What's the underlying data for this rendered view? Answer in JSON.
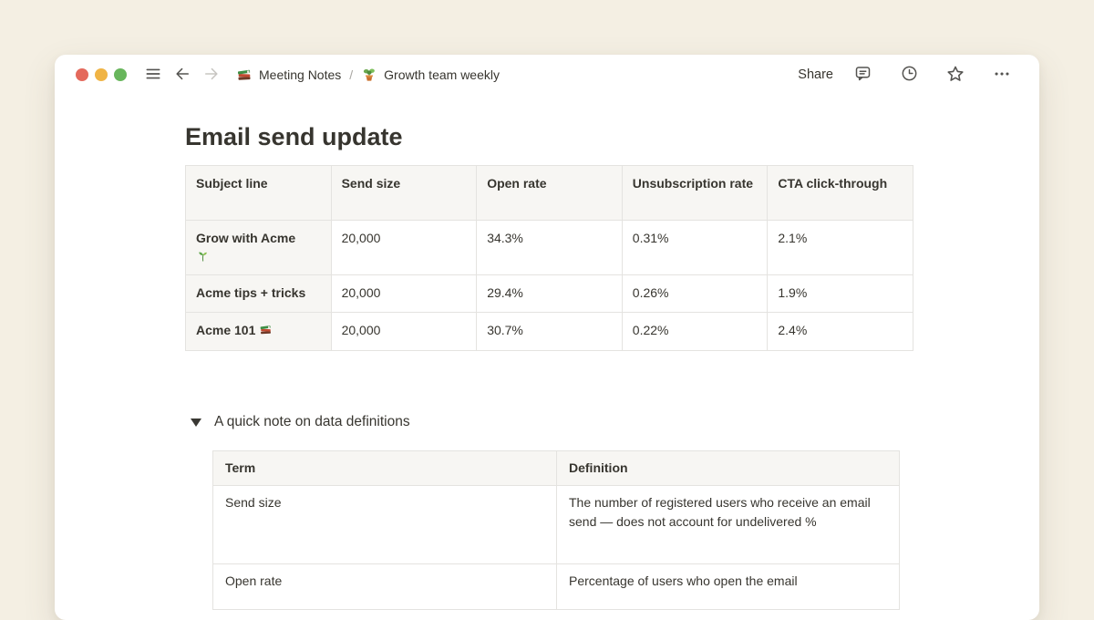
{
  "titlebar": {
    "window_controls": [
      {
        "name": "close",
        "color": "#e4695c"
      },
      {
        "name": "minimize",
        "color": "#f0b445"
      },
      {
        "name": "zoom",
        "color": "#68b65c"
      }
    ],
    "breadcrumb": {
      "separator": "/",
      "items": [
        {
          "icon": "books-emoji",
          "emoji": "📚",
          "label": "Meeting Notes"
        },
        {
          "icon": "potted-plant-emoji",
          "emoji": "🪴",
          "label": "Growth team weekly"
        }
      ]
    },
    "share_label": "Share",
    "action_icons": [
      "comment-icon",
      "clock-icon",
      "star-icon",
      "more-icon"
    ]
  },
  "page": {
    "title": "Email send update",
    "email_table": {
      "headers": [
        "Subject line",
        "Send size",
        "Open rate",
        "Unsubscription rate",
        "CTA click-through"
      ],
      "rows": [
        [
          {
            "text": "Grow with Acme",
            "emoji": "🌱",
            "icon": "seedling-emoji",
            "emoji_on_new_line": true
          },
          "20,000",
          "34.3%",
          "0.31%",
          "2.1%"
        ],
        [
          {
            "text": "Acme tips + tricks"
          },
          "20,000",
          "29.4%",
          "0.26%",
          "1.9%"
        ],
        [
          {
            "text": "Acme 101",
            "emoji": "📚",
            "icon": "books-emoji",
            "emoji_on_new_line": false
          },
          "20,000",
          "30.7%",
          "0.22%",
          "2.4%"
        ]
      ]
    },
    "toggle": {
      "label": "A quick note on data definitions",
      "state": "expanded",
      "icon": "triangle-down-icon"
    },
    "definitions_table": {
      "headers": [
        "Term",
        "Definition"
      ],
      "rows": [
        [
          "Send size",
          "The number of registered users who receive an email send — does not account for undelivered %"
        ],
        [
          "Open rate",
          "Percentage of users who open the email"
        ]
      ]
    }
  },
  "colors": {
    "canvas_background": "#f4efe3",
    "window_background": "#ffffff",
    "text_primary": "#37352f",
    "table_border": "#e4e3e0",
    "table_header_background": "#f7f6f3",
    "icon_gray": "#545350",
    "disabled_arrow": "#c7c5c1"
  }
}
